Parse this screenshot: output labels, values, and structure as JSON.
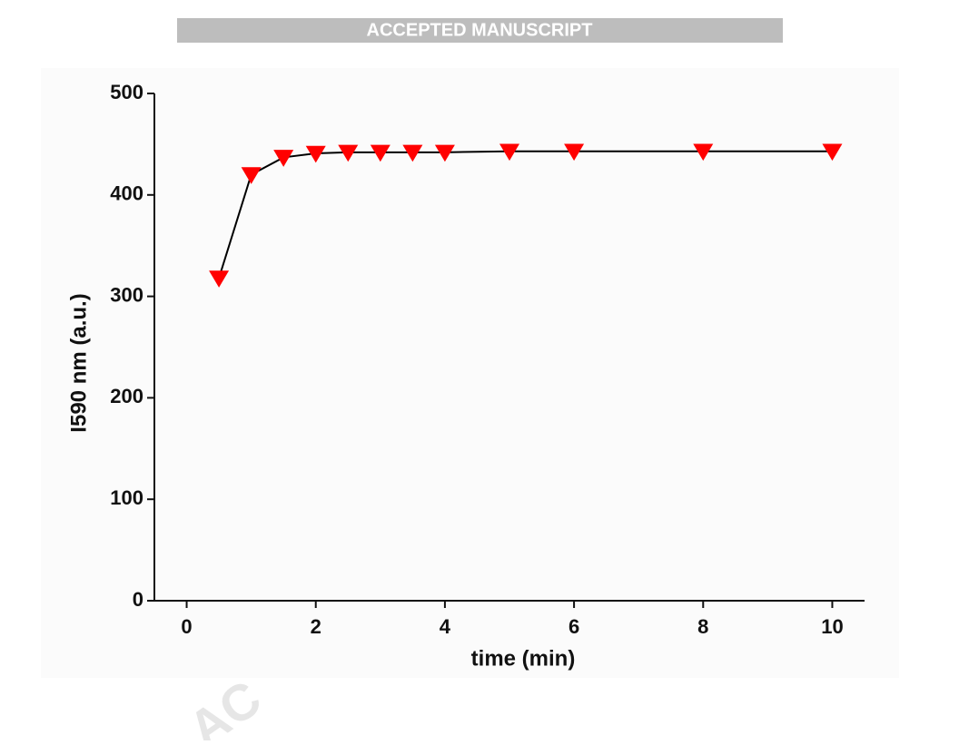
{
  "banner": "ACCEPTED MANUSCRIPT",
  "watermark": "AC",
  "chart_data": {
    "type": "line",
    "x_label": "time (min)",
    "y_label": "I590 nm (a.u.)",
    "x": [
      0.5,
      1,
      1.5,
      2,
      2.5,
      3,
      3.5,
      4,
      5,
      6,
      8,
      10
    ],
    "series": [
      {
        "color": "#ff0000",
        "line_color": "#000000",
        "marker": "triangle-down",
        "values": [
          318,
          420,
          437,
          441,
          442,
          442,
          442,
          442,
          443,
          443,
          443,
          443
        ]
      }
    ],
    "xlim": [
      -0.5,
      10.5
    ],
    "xticks": [
      0,
      2,
      4,
      6,
      8,
      10
    ],
    "ylim": [
      0,
      500
    ],
    "yticks": [
      0,
      100,
      200,
      300,
      400,
      500
    ],
    "grid": false
  }
}
